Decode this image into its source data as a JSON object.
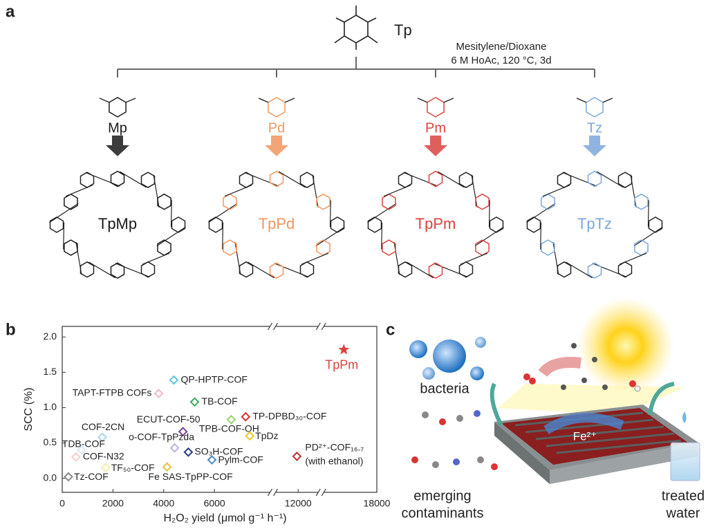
{
  "panel_labels": [
    "a",
    "b",
    "c"
  ],
  "panel_a": {
    "precursor": "Tp",
    "conditions": [
      "Mesitylene/Dioxane",
      "6 M HoAc, 120 °C, 3d"
    ],
    "monomers": [
      "Mp",
      "Pd",
      "Pm",
      "Tz"
    ],
    "products": [
      "TpMp",
      "TpPd",
      "TpPm",
      "TpTz"
    ],
    "colors": [
      "#1a1a1a",
      "#f0965f",
      "#d9433f",
      "#7ba7d9"
    ]
  },
  "chart_data": {
    "type": "scatter",
    "xlabel": "H₂O₂ yield (μmol g⁻¹ h⁻¹)",
    "ylabel": "SCC (%)",
    "xlim": [
      0,
      18000
    ],
    "xticks": [
      0,
      2000,
      4000,
      6000,
      12000,
      18000
    ],
    "xbreaks": [
      [
        8300,
        11000
      ],
      [
        12900,
        15800
      ]
    ],
    "ylim": [
      -0.2,
      2.15
    ],
    "yticks": [
      {
        "value": 0,
        "label": "0.0"
      },
      0.5,
      {
        "value": 1,
        "label": "1.0"
      },
      1.5,
      {
        "value": 2,
        "label": "2.0"
      }
    ],
    "series": [
      {
        "name": "TpPm",
        "color": "#d9433f",
        "marker": "star",
        "x": [
          16700
        ],
        "values": [
          1.82
        ]
      },
      {
        "name": "QP-HPTP-COF",
        "color": "#5bc8d8",
        "marker": "diamond",
        "x": [
          4400
        ],
        "values": [
          1.39
        ]
      },
      {
        "name": "TAPT-FTPB COFs",
        "color": "#f2b8c0",
        "marker": "diamond",
        "x": [
          3800
        ],
        "values": [
          1.2
        ]
      },
      {
        "name": "TB-COF",
        "color": "#3daa5a",
        "marker": "diamond",
        "x": [
          5220
        ],
        "values": [
          1.08
        ]
      },
      {
        "name": "TP-DPBD₃₀-COF",
        "color": "#d9302c",
        "marker": "diamond",
        "x": [
          7230
        ],
        "values": [
          0.87
        ]
      },
      {
        "name": "TPB-COF-OH",
        "color": "#9bd36b",
        "marker": "diamond",
        "x": [
          6660
        ],
        "values": [
          0.83
        ]
      },
      {
        "name": "ECUT-COF-50",
        "color": "#7a3fa0",
        "marker": "diamond",
        "x": [
          4760
        ],
        "values": [
          0.66
        ]
      },
      {
        "name": "COF-2CN",
        "color": "#a9d3ee",
        "marker": "diamond",
        "x": [
          1580
        ],
        "values": [
          0.58
        ]
      },
      {
        "name": "TpDz",
        "color": "#e8c62a",
        "marker": "diamond",
        "x": [
          7390
        ],
        "values": [
          0.6
        ]
      },
      {
        "name": "o-COF-TpPzda",
        "color": "#b8b4e0",
        "marker": "diamond",
        "x": [
          4430
        ],
        "values": [
          0.43
        ]
      },
      {
        "name": "SO₃H-COF",
        "color": "#1f3a80",
        "marker": "diamond",
        "x": [
          4970
        ],
        "values": [
          0.37
        ]
      },
      {
        "name": "Pylm-COF",
        "color": "#4a86c0",
        "marker": "diamond",
        "x": [
          5900
        ],
        "values": [
          0.26
        ]
      },
      {
        "name": "PD²⁺-COF₁₆.₇",
        "note": "(with ethanol)",
        "color": "#b8302a",
        "marker": "diamond",
        "x": [
          11950
        ],
        "values": [
          0.31
        ]
      },
      {
        "name": "TDB-COF",
        "color": "#d5e8f2",
        "marker": "diamond",
        "x": [
          760
        ],
        "values": [
          0.4
        ]
      },
      {
        "name": "COF-N32",
        "color": "#f2cfc8",
        "marker": "diamond",
        "x": [
          540
        ],
        "values": [
          0.3
        ]
      },
      {
        "name": "TF₅₀-COF",
        "color": "#f2eeb0",
        "marker": "diamond",
        "x": [
          1710
        ],
        "values": [
          0.15
        ]
      },
      {
        "name": "Fe SAS-TpPP-COF",
        "color": "#e8c23a",
        "marker": "diamond",
        "x": [
          4130
        ],
        "values": [
          0.16
        ]
      },
      {
        "name": "Tz-COF",
        "color": "#8a8a8a",
        "marker": "diamond",
        "x": [
          245
        ],
        "values": [
          0.02
        ]
      }
    ]
  },
  "panel_c": {
    "labels": [
      "bacteria",
      [
        "emerging",
        "contaminants"
      ],
      [
        "treated",
        "water"
      ]
    ],
    "ion": "Fe²⁺"
  }
}
